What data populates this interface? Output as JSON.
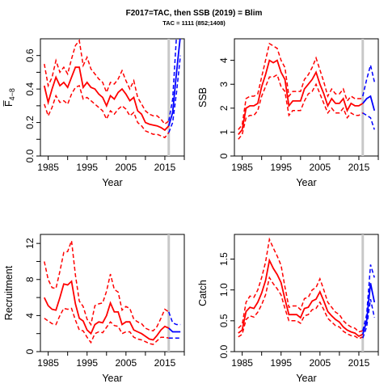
{
  "title": "F2017=TAC, then SSB (2019) = Blim",
  "subtitle": "TAC = 1111 (852;1408)",
  "colors": {
    "historic": "#ff0000",
    "forecast": "#0000ff",
    "marker": "#c8c8c8"
  },
  "chart_data": [
    {
      "type": "line",
      "xlabel": "Year",
      "ylabel": "F̅",
      "ylabel_sub": "4−8",
      "xlim": [
        1983,
        2020
      ],
      "ylim": [
        0,
        0.7
      ],
      "xticks": [
        "1985",
        "1995",
        "2005",
        "2015"
      ],
      "yticks": [
        "0.0",
        "0.2",
        "0.4",
        "0.6"
      ],
      "ytick_values": [
        0,
        0.2,
        0.4,
        0.6
      ],
      "minor_yticks": [
        0.1,
        0.3,
        0.5
      ],
      "vline_x": 2016,
      "historic": {
        "x": [
          1984,
          1985,
          1986,
          1987,
          1988,
          1989,
          1990,
          1991,
          1992,
          1993,
          1994,
          1995,
          1996,
          1997,
          1998,
          1999,
          2000,
          2001,
          2002,
          2003,
          2004,
          2005,
          2006,
          2007,
          2008,
          2009,
          2010,
          2011,
          2012,
          2013,
          2014,
          2015,
          2016
        ],
        "median": [
          0.42,
          0.32,
          0.4,
          0.47,
          0.42,
          0.44,
          0.41,
          0.47,
          0.53,
          0.53,
          0.41,
          0.44,
          0.41,
          0.4,
          0.37,
          0.35,
          0.3,
          0.36,
          0.34,
          0.38,
          0.4,
          0.37,
          0.33,
          0.35,
          0.27,
          0.25,
          0.2,
          0.19,
          0.185,
          0.18,
          0.17,
          0.155,
          0.18
        ],
        "upper": [
          0.55,
          0.42,
          0.47,
          0.57,
          0.5,
          0.53,
          0.49,
          0.58,
          0.66,
          0.69,
          0.54,
          0.59,
          0.52,
          0.49,
          0.46,
          0.44,
          0.38,
          0.44,
          0.43,
          0.46,
          0.51,
          0.45,
          0.4,
          0.45,
          0.35,
          0.31,
          0.27,
          0.25,
          0.24,
          0.24,
          0.22,
          0.19,
          0.21
        ],
        "lower": [
          0.31,
          0.24,
          0.29,
          0.36,
          0.32,
          0.33,
          0.31,
          0.37,
          0.41,
          0.42,
          0.34,
          0.35,
          0.33,
          0.31,
          0.29,
          0.27,
          0.22,
          0.27,
          0.25,
          0.28,
          0.3,
          0.28,
          0.24,
          0.26,
          0.2,
          0.18,
          0.15,
          0.14,
          0.13,
          0.13,
          0.12,
          0.11,
          0.14
        ]
      },
      "forecast": {
        "x": [
          2016,
          2017,
          2018,
          2019
        ],
        "median": [
          0.18,
          0.26,
          0.5,
          0.72
        ],
        "upper": [
          0.21,
          0.34,
          0.72,
          0.9
        ],
        "lower": [
          0.14,
          0.2,
          0.38,
          0.6
        ]
      }
    },
    {
      "type": "line",
      "xlabel": "Year",
      "ylabel": "SSB",
      "xlim": [
        1983,
        2020
      ],
      "ylim": [
        0,
        4.9
      ],
      "xticks": [
        "1985",
        "1995",
        "2005",
        "2015"
      ],
      "yticks": [
        "0",
        "1",
        "2",
        "3",
        "4"
      ],
      "ytick_values": [
        0,
        1,
        2,
        3,
        4
      ],
      "minor_yticks": [],
      "vline_x": 2016,
      "historic": {
        "x": [
          1984,
          1985,
          1986,
          1987,
          1988,
          1989,
          1990,
          1991,
          1992,
          1993,
          1994,
          1995,
          1996,
          1997,
          1998,
          1999,
          2000,
          2001,
          2002,
          2003,
          2004,
          2005,
          2006,
          2007,
          2008,
          2009,
          2010,
          2011,
          2012,
          2013,
          2014,
          2015,
          2016
        ],
        "median": [
          0.9,
          1.1,
          2.0,
          2.1,
          2.1,
          2.2,
          2.9,
          3.4,
          4.0,
          3.9,
          4.0,
          3.5,
          3.2,
          2.1,
          2.3,
          2.3,
          2.3,
          2.8,
          3.0,
          3.2,
          3.5,
          3.0,
          2.6,
          2.1,
          2.4,
          2.2,
          2.2,
          2.4,
          1.9,
          2.2,
          2.1,
          2.1,
          2.2
        ],
        "upper": [
          1.1,
          1.3,
          2.4,
          2.5,
          2.5,
          2.6,
          3.3,
          4.0,
          4.7,
          4.6,
          4.5,
          4.0,
          3.7,
          2.5,
          2.7,
          2.7,
          2.7,
          3.2,
          3.4,
          3.7,
          4.1,
          3.6,
          3.1,
          2.5,
          2.8,
          2.6,
          2.6,
          2.8,
          2.3,
          2.5,
          2.4,
          2.4,
          2.4
        ],
        "lower": [
          0.7,
          0.9,
          1.6,
          1.7,
          1.7,
          1.9,
          2.5,
          2.9,
          3.3,
          3.3,
          3.4,
          2.9,
          2.7,
          1.7,
          1.9,
          1.9,
          1.9,
          2.3,
          2.6,
          2.7,
          3.0,
          2.6,
          2.2,
          1.8,
          2.0,
          1.8,
          1.8,
          2.0,
          1.6,
          1.8,
          1.7,
          1.7,
          1.8
        ]
      },
      "forecast": {
        "x": [
          2016,
          2017,
          2018,
          2019
        ],
        "median": [
          2.2,
          2.4,
          2.5,
          1.9
        ],
        "upper": [
          2.5,
          3.2,
          3.8,
          3.1
        ],
        "lower": [
          1.8,
          1.7,
          1.6,
          1.1
        ]
      }
    },
    {
      "type": "line",
      "xlabel": "Year",
      "ylabel": "Recruitment",
      "xlim": [
        1983,
        2020
      ],
      "ylim": [
        0,
        13
      ],
      "xticks": [
        "1985",
        "1995",
        "2005",
        "2015"
      ],
      "yticks": [
        "0",
        "4",
        "8",
        "12"
      ],
      "ytick_values": [
        0,
        4,
        8,
        12
      ],
      "minor_yticks": [
        2,
        6,
        10
      ],
      "vline_x": 2016,
      "historic": {
        "x": [
          1984,
          1985,
          1986,
          1987,
          1988,
          1989,
          1990,
          1991,
          1992,
          1993,
          1994,
          1995,
          1996,
          1997,
          1998,
          1999,
          2000,
          2001,
          2002,
          2003,
          2004,
          2005,
          2006,
          2007,
          2008,
          2009,
          2010,
          2011,
          2012,
          2013,
          2014,
          2015,
          2016
        ],
        "median": [
          6.0,
          5.1,
          4.7,
          4.6,
          6.0,
          7.5,
          7.4,
          7.8,
          5.3,
          3.7,
          3.4,
          2.4,
          2.0,
          3.0,
          3.3,
          3.2,
          4.0,
          5.4,
          4.4,
          4.4,
          3.0,
          3.3,
          3.3,
          2.4,
          2.2,
          2.0,
          1.7,
          1.4,
          1.3,
          1.8,
          2.4,
          2.8,
          2.6
        ],
        "upper": [
          10.0,
          8.0,
          7.1,
          7.0,
          8.9,
          11.0,
          11.1,
          12.3,
          8.5,
          5.6,
          5.0,
          3.6,
          3.0,
          5.1,
          5.3,
          5.4,
          6.7,
          8.6,
          6.9,
          6.6,
          4.6,
          5.0,
          4.8,
          3.6,
          3.3,
          3.1,
          2.6,
          2.4,
          2.3,
          2.8,
          3.7,
          4.7,
          4.4
        ],
        "lower": [
          3.7,
          3.4,
          3.1,
          3.0,
          4.0,
          4.8,
          4.7,
          4.8,
          3.5,
          2.4,
          2.3,
          1.6,
          1.0,
          2.0,
          2.2,
          2.1,
          2.7,
          3.3,
          2.9,
          2.8,
          2.0,
          2.2,
          2.2,
          1.6,
          1.4,
          1.3,
          1.1,
          0.9,
          0.8,
          1.2,
          1.6,
          1.6,
          1.5
        ]
      },
      "forecast": {
        "x": [
          2016,
          2017,
          2018,
          2019
        ],
        "median": [
          2.6,
          2.2,
          2.2,
          2.2
        ],
        "upper": [
          4.4,
          3.2,
          3.0,
          3.0
        ],
        "lower": [
          1.5,
          1.5,
          1.5,
          1.5
        ]
      }
    },
    {
      "type": "line",
      "xlabel": "Year",
      "ylabel": "Catch",
      "xlim": [
        1983,
        2020
      ],
      "ylim": [
        0,
        1.9
      ],
      "xticks": [
        "1985",
        "1995",
        "2005",
        "2015"
      ],
      "yticks": [
        "0.0",
        "0.5",
        "1.0",
        "1.5"
      ],
      "ytick_values": [
        0,
        0.5,
        1.0,
        1.5
      ],
      "minor_yticks": [],
      "vline_x": 2016,
      "historic": {
        "x": [
          1984,
          1985,
          1986,
          1987,
          1988,
          1989,
          1990,
          1991,
          1992,
          1993,
          1994,
          1995,
          1996,
          1997,
          1998,
          1999,
          2000,
          2001,
          2002,
          2003,
          2004,
          2005,
          2006,
          2007,
          2008,
          2009,
          2010,
          2011,
          2012,
          2013,
          2014,
          2015,
          2016
        ],
        "median": [
          0.3,
          0.35,
          0.65,
          0.72,
          0.7,
          0.8,
          0.95,
          1.15,
          1.48,
          1.35,
          1.25,
          1.12,
          0.85,
          0.6,
          0.6,
          0.6,
          0.55,
          0.7,
          0.72,
          0.82,
          0.85,
          0.97,
          0.82,
          0.65,
          0.58,
          0.52,
          0.48,
          0.4,
          0.35,
          0.32,
          0.3,
          0.25,
          0.28
        ],
        "upper": [
          0.38,
          0.44,
          0.8,
          0.9,
          0.88,
          1.0,
          1.2,
          1.45,
          1.82,
          1.68,
          1.55,
          1.4,
          1.05,
          0.72,
          0.74,
          0.74,
          0.68,
          0.86,
          0.88,
          1.0,
          1.04,
          1.18,
          1.0,
          0.8,
          0.72,
          0.64,
          0.6,
          0.5,
          0.44,
          0.4,
          0.38,
          0.32,
          0.34
        ],
        "lower": [
          0.24,
          0.28,
          0.52,
          0.58,
          0.56,
          0.64,
          0.76,
          0.92,
          1.2,
          1.1,
          1.02,
          0.92,
          0.7,
          0.5,
          0.5,
          0.5,
          0.46,
          0.58,
          0.6,
          0.68,
          0.7,
          0.8,
          0.68,
          0.54,
          0.48,
          0.42,
          0.4,
          0.33,
          0.29,
          0.26,
          0.25,
          0.21,
          0.24
        ]
      },
      "forecast": {
        "x": [
          2016,
          2017,
          2018,
          2019
        ],
        "median": [
          0.28,
          0.5,
          1.11,
          0.8
        ],
        "upper": [
          0.34,
          0.6,
          1.41,
          1.2
        ],
        "lower": [
          0.22,
          0.4,
          0.85,
          0.55
        ]
      }
    }
  ]
}
